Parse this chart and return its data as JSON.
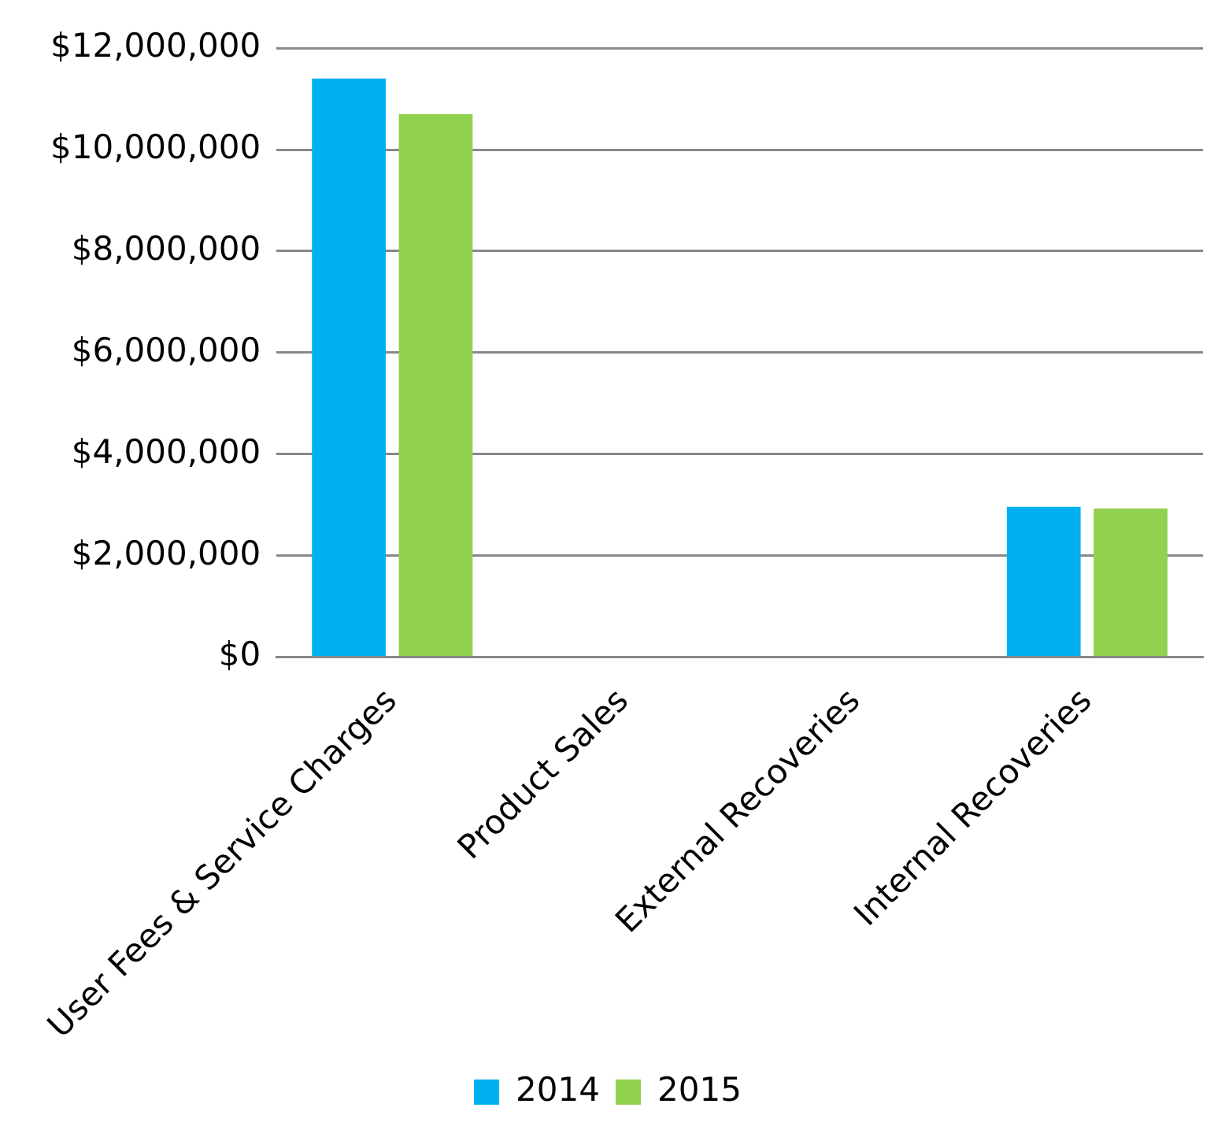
{
  "chart_data": {
    "type": "bar",
    "categories": [
      "User Fees & Service Charges",
      "Product Sales",
      "External Recoveries",
      "Internal Recoveries"
    ],
    "series": [
      {
        "name": "2014",
        "color": "#00b0f0",
        "values": [
          11400000,
          0,
          0,
          2960000
        ]
      },
      {
        "name": "2015",
        "color": "#92d050",
        "values": [
          10700000,
          0,
          0,
          2930000
        ]
      }
    ],
    "ylim": [
      0,
      12000000
    ],
    "yticks": [
      {
        "value": 0,
        "label": "$0"
      },
      {
        "value": 2000000,
        "label": "$2,000,000"
      },
      {
        "value": 4000000,
        "label": "$4,000,000"
      },
      {
        "value": 6000000,
        "label": "$6,000,000"
      },
      {
        "value": 8000000,
        "label": "$8,000,000"
      },
      {
        "value": 10000000,
        "label": "$10,000,000"
      },
      {
        "value": 12000000,
        "label": "$12,000,000"
      }
    ],
    "grid": "y",
    "legend": "bottom"
  }
}
